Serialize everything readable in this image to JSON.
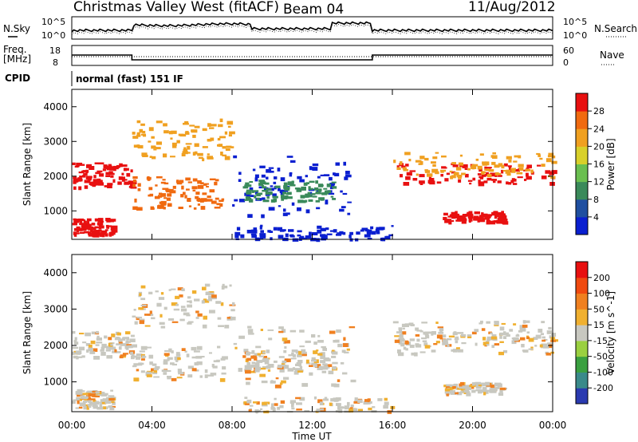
{
  "header": {
    "station": "Christmas Valley West (fitACF)",
    "beam": "Beam 04",
    "date": "11/Aug/2012"
  },
  "left_labels": {
    "nsky": "N.Sky",
    "freq": "Freq.",
    "freq_unit": "[MHz]",
    "cpid": "CPID",
    "cpid_value": "normal (fast) 151 IF"
  },
  "right_labels": {
    "nsearch": "N.Search",
    "nave": "Nave"
  },
  "noise_panel": {
    "left_ticks": [
      "10^5",
      "10^0"
    ],
    "right_ticks": [
      "10^5",
      "10^0"
    ]
  },
  "freq_panel": {
    "left_ticks": [
      "18",
      "8"
    ],
    "right_ticks": [
      "60",
      "0"
    ],
    "freq_steps": [
      {
        "from_hour": 0,
        "to_hour": 3,
        "value": 13.5
      },
      {
        "from_hour": 3,
        "to_hour": 15,
        "value": 10.5
      },
      {
        "from_hour": 15,
        "to_hour": 24,
        "value": 13.5
      }
    ]
  },
  "chart_data": [
    {
      "type": "heatmap",
      "name": "power-panel",
      "ylabel": "Slant Range [km]",
      "xlabel": "",
      "x_ticks": [
        "00:00",
        "04:00",
        "08:00",
        "12:00",
        "16:00",
        "20:00",
        "00:00"
      ],
      "xlim_hours": [
        0,
        24
      ],
      "ylim": [
        180,
        4500
      ],
      "y_ticks": [
        1000,
        2000,
        3000,
        4000
      ],
      "colorbar": {
        "label": "Power [dB]",
        "ticks": [
          "4",
          "8",
          "12",
          "16",
          "20",
          "24",
          "28"
        ],
        "colors": [
          "#0a1fd0",
          "#1f4fa0",
          "#3a8a5a",
          "#6abf50",
          "#d8d02a",
          "#f0a020",
          "#f06a10",
          "#e81010"
        ]
      }
    },
    {
      "type": "heatmap",
      "name": "velocity-panel",
      "ylabel": "Slant Range [km]",
      "xlabel": "Time UT",
      "x_ticks": [
        "00:00",
        "04:00",
        "08:00",
        "12:00",
        "16:00",
        "20:00",
        "00:00"
      ],
      "xlim_hours": [
        0,
        24
      ],
      "ylim": [
        180,
        4500
      ],
      "y_ticks": [
        1000,
        2000,
        3000,
        4000
      ],
      "colorbar": {
        "label": "Velocity [m s^-1]",
        "ticks": [
          "200",
          "100",
          "50",
          "15",
          "-15",
          "-50",
          "-100",
          "-200"
        ],
        "colors": [
          "#2a3ab0",
          "#3a8a8a",
          "#3aa040",
          "#9ad040",
          "#c8c8c0",
          "#f0b030",
          "#f08020",
          "#f04a10",
          "#e81010"
        ]
      }
    }
  ],
  "colors": {
    "ground_gray": "#c8c8c0",
    "line": "#000000"
  }
}
